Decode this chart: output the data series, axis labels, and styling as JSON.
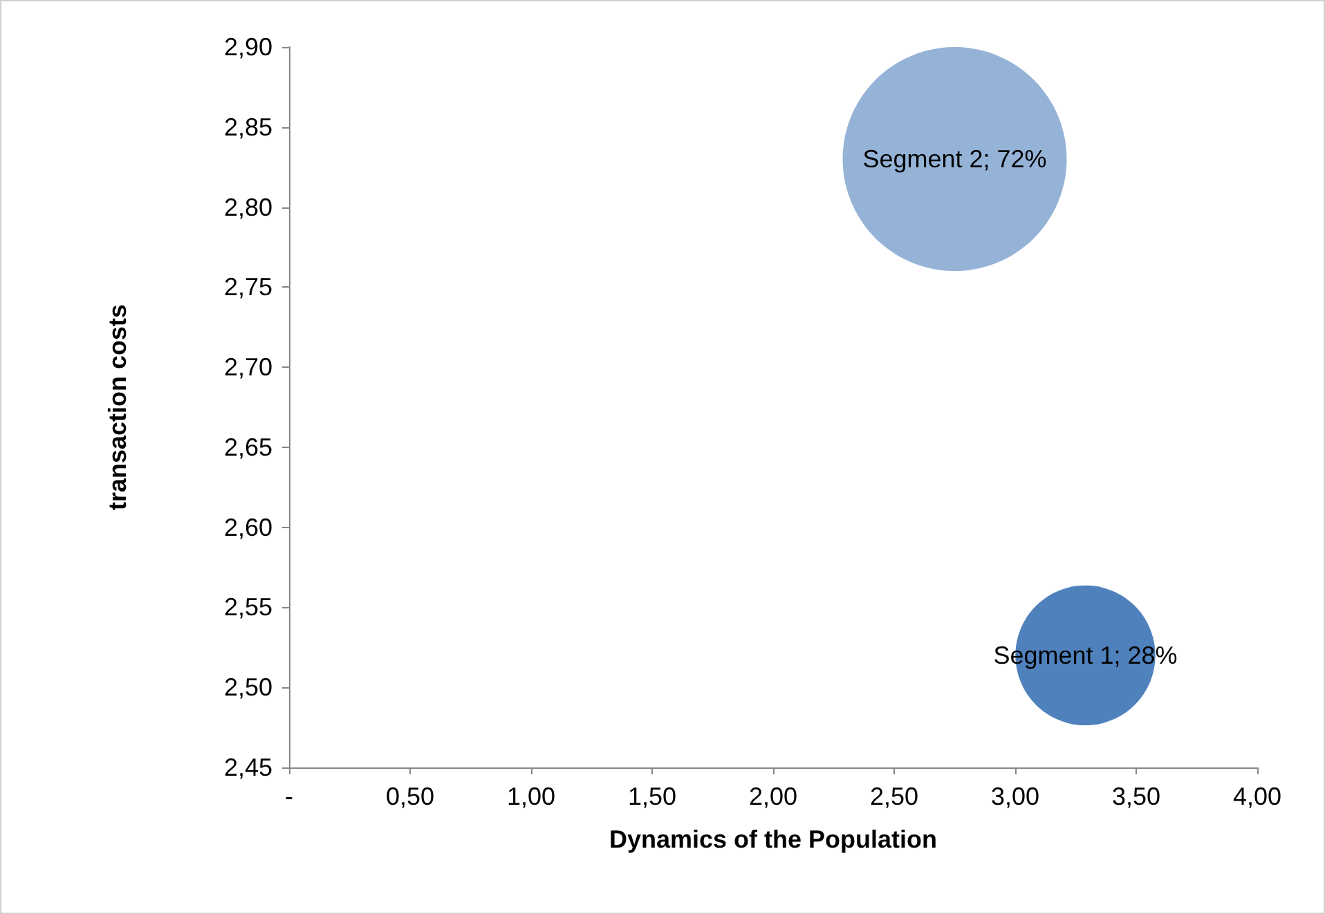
{
  "chart_data": {
    "type": "bubble",
    "xlabel": "Dynamics of the Population",
    "ylabel": "transaction costs",
    "series": [
      {
        "color": "#4f81bd",
        "x": [
          3.29
        ],
        "values": [
          2.52
        ],
        "sizes": [
          0.39
        ],
        "value_labels": [
          "Segment 1; 28%"
        ]
      },
      {
        "color": "#95b3d7",
        "x": [
          2.75
        ],
        "values": [
          2.83
        ],
        "sizes": [
          1
        ],
        "value_labels": [
          "Segment 2; 72%"
        ]
      }
    ],
    "xlim": [
      0,
      4
    ],
    "xticks": [
      {
        "value": 0,
        "label": "-"
      },
      {
        "value": 0.5,
        "label": "0,50"
      },
      {
        "value": 1,
        "label": "1,00"
      },
      {
        "value": 1.5,
        "label": "1,50"
      },
      {
        "value": 2,
        "label": "2,00"
      },
      {
        "value": 2.5,
        "label": "2,50"
      },
      {
        "value": 3,
        "label": "3,00"
      },
      {
        "value": 3.5,
        "label": "3,50"
      },
      {
        "value": 4,
        "label": "4,00"
      }
    ],
    "ylim": [
      2.45,
      2.9
    ],
    "yticks": [
      {
        "value": 2.45,
        "label": "2,45"
      },
      {
        "value": 2.5,
        "label": "2,50"
      },
      {
        "value": 2.55,
        "label": "2,55"
      },
      {
        "value": 2.6,
        "label": "2,60"
      },
      {
        "value": 2.65,
        "label": "2,65"
      },
      {
        "value": 2.7,
        "label": "2,70"
      },
      {
        "value": 2.75,
        "label": "2,75"
      },
      {
        "value": 2.8,
        "label": "2,80"
      },
      {
        "value": 2.85,
        "label": "2,85"
      },
      {
        "value": 2.9,
        "label": "2,90"
      }
    ],
    "grid": false
  }
}
